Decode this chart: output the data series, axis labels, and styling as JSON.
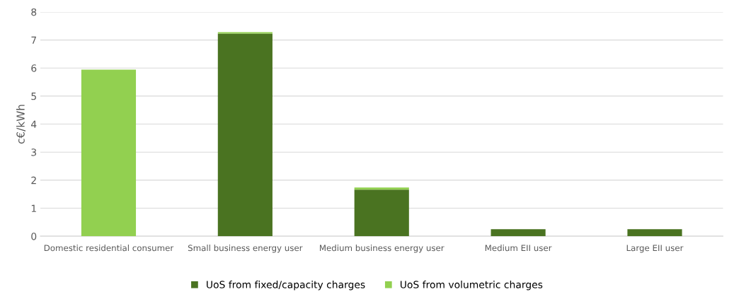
{
  "chart_data": {
    "type": "bar",
    "stacked": true,
    "ylabel": "c€/kWh",
    "categories": [
      "Domestic residential consumer",
      "Small business energy user",
      "Medium business energy user",
      "Medium EII user",
      "Large EII user"
    ],
    "series": [
      {
        "name": "UoS from fixed/capacity charges",
        "color": "#4a7321",
        "values": [
          0,
          7.23,
          1.66,
          0.25,
          0.25
        ]
      },
      {
        "name": "UoS from volumetric charges",
        "color": "#92d050",
        "values": [
          5.94,
          0.05,
          0.08,
          0,
          0
        ]
      }
    ],
    "ylim": [
      0,
      8
    ],
    "yticks": [
      0,
      1,
      2,
      3,
      4,
      5,
      6,
      7,
      8
    ],
    "grid": "y",
    "legend": "bottom"
  }
}
